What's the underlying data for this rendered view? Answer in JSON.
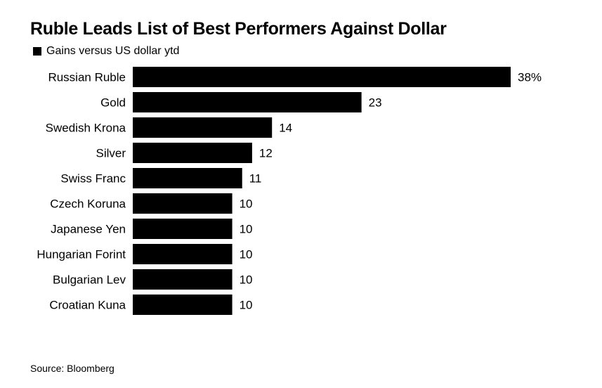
{
  "title": "Ruble Leads List of Best Performers Against Dollar",
  "legend": {
    "label": "Gains versus US dollar ytd",
    "color": "#000000"
  },
  "source": "Source: Bloomberg",
  "chart_data": {
    "type": "bar",
    "orientation": "horizontal",
    "title": "Ruble Leads List of Best Performers Against Dollar",
    "xlabel": "",
    "ylabel": "",
    "unit": "%",
    "grid": false,
    "legend_position": "top-left",
    "categories": [
      "Russian Ruble",
      "Gold",
      "Swedish Krona",
      "Silver",
      "Swiss Franc",
      "Czech Koruna",
      "Japanese Yen",
      "Hungarian Forint",
      "Bulgarian Lev",
      "Croatian Kuna"
    ],
    "series": [
      {
        "name": "Gains versus US dollar ytd",
        "color": "#000000",
        "values": [
          38,
          23,
          14,
          12,
          11,
          10,
          10,
          10,
          10,
          10
        ],
        "value_labels": [
          "38%",
          "23",
          "14",
          "12",
          "11",
          "10",
          "10",
          "10",
          "10",
          "10"
        ]
      }
    ],
    "xlim": [
      0,
      38
    ]
  }
}
